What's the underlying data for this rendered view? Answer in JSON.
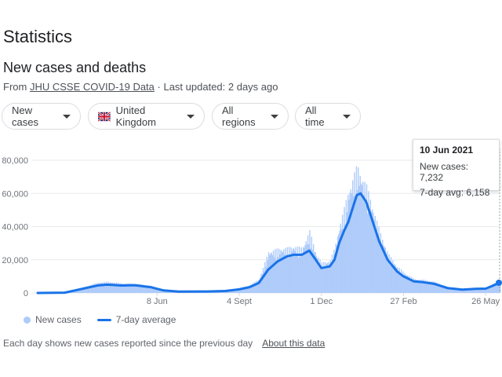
{
  "header": {
    "title": "Statistics",
    "subtitle": "New cases and deaths",
    "source_prefix": "From",
    "source_link": "JHU CSSE COVID-19 Data",
    "updated": "· Last updated: 2 days ago"
  },
  "filters": [
    {
      "label": "New cases"
    },
    {
      "label": "United Kingdom",
      "icon": "uk-flag-icon"
    },
    {
      "label": "All regions"
    },
    {
      "label": "All time"
    }
  ],
  "tooltip": {
    "date": "10 Jun 2021",
    "new_cases": "New cases: 7,232",
    "avg": "7-day avg: 6,158"
  },
  "legend": {
    "new_cases": "New cases",
    "avg": "7-day average"
  },
  "footer": {
    "note": "Each day shows new cases reported since the previous day",
    "about": "About this data"
  },
  "colors": {
    "bars": "#aecbfa",
    "line": "#1a73e8",
    "grid": "#e8eaed"
  },
  "chart_data": {
    "type": "line",
    "ylim": [
      0,
      80000
    ],
    "y_ticks": [
      0,
      20000,
      40000,
      60000,
      80000
    ],
    "y_tick_labels": [
      "0",
      "20,000",
      "40,000",
      "60,000",
      "80,000"
    ],
    "x_tick_labels": [
      "8 Jun",
      "4 Sept",
      "1 Dec",
      "27 Feb",
      "26 May"
    ],
    "x_range": [
      "2020-02-01",
      "2021-06-10"
    ],
    "series": [
      {
        "name": "7-day average",
        "x": [
          "2020-02-01",
          "2020-03-01",
          "2020-03-20",
          "2020-04-05",
          "2020-04-15",
          "2020-05-01",
          "2020-05-15",
          "2020-06-01",
          "2020-06-15",
          "2020-07-01",
          "2020-08-01",
          "2020-08-20",
          "2020-09-04",
          "2020-09-15",
          "2020-09-25",
          "2020-10-05",
          "2020-10-15",
          "2020-10-25",
          "2020-11-01",
          "2020-11-10",
          "2020-11-18",
          "2020-11-25",
          "2020-12-01",
          "2020-12-10",
          "2020-12-15",
          "2020-12-20",
          "2020-12-25",
          "2020-12-30",
          "2021-01-04",
          "2021-01-08",
          "2021-01-12",
          "2021-01-18",
          "2021-01-25",
          "2021-02-01",
          "2021-02-10",
          "2021-02-20",
          "2021-02-27",
          "2021-03-10",
          "2021-03-20",
          "2021-04-01",
          "2021-04-15",
          "2021-05-01",
          "2021-05-15",
          "2021-05-26",
          "2021-06-01",
          "2021-06-10"
        ],
        "y": [
          0,
          200,
          2500,
          4500,
          5000,
          4500,
          4700,
          3500,
          1500,
          800,
          900,
          1200,
          2200,
          3500,
          6000,
          14000,
          19000,
          22000,
          23000,
          23000,
          25500,
          20000,
          15000,
          16000,
          20000,
          30000,
          37000,
          43000,
          52000,
          59000,
          60000,
          55000,
          43000,
          31000,
          20000,
          13000,
          10000,
          7000,
          6500,
          5500,
          3000,
          2000,
          2500,
          2600,
          4000,
          6158
        ]
      },
      {
        "name": "New cases",
        "x": [
          "2020-02-01",
          "2020-03-01",
          "2020-03-20",
          "2020-04-05",
          "2020-04-15",
          "2020-05-01",
          "2020-05-15",
          "2020-06-01",
          "2020-06-15",
          "2020-07-01",
          "2020-08-01",
          "2020-08-20",
          "2020-09-04",
          "2020-09-15",
          "2020-09-25",
          "2020-10-05",
          "2020-10-15",
          "2020-10-25",
          "2020-11-01",
          "2020-11-10",
          "2020-11-18",
          "2020-11-25",
          "2020-12-01",
          "2020-12-10",
          "2020-12-15",
          "2020-12-20",
          "2020-12-25",
          "2020-12-30",
          "2021-01-04",
          "2021-01-08",
          "2021-01-12",
          "2021-01-18",
          "2021-01-25",
          "2021-02-01",
          "2021-02-10",
          "2021-02-20",
          "2021-02-27",
          "2021-03-10",
          "2021-03-20",
          "2021-04-01",
          "2021-04-15",
          "2021-05-01",
          "2021-05-15",
          "2021-05-26",
          "2021-06-01",
          "2021-06-10"
        ],
        "y": [
          0,
          300,
          3000,
          5500,
          6000,
          5200,
          5000,
          3800,
          1700,
          900,
          1000,
          1400,
          2600,
          4200,
          7500,
          22000,
          23500,
          24000,
          25000,
          24000,
          33000,
          21000,
          16000,
          17500,
          24000,
          36000,
          45000,
          55000,
          62000,
          68000,
          63000,
          57000,
          45000,
          33000,
          21000,
          14000,
          11000,
          7500,
          7000,
          6000,
          3200,
          2200,
          2800,
          3000,
          4500,
          7232
        ]
      }
    ]
  }
}
